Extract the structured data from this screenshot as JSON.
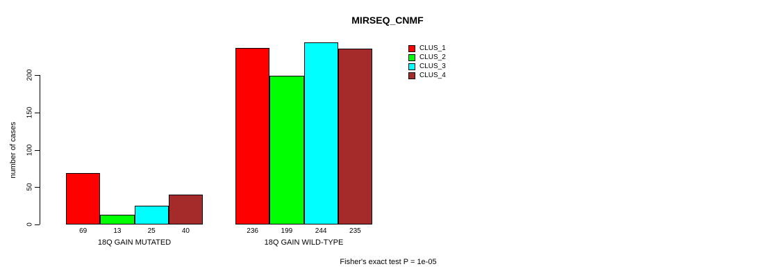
{
  "title": "MIRSEQ_CNMF",
  "footnote": "Fisher's exact test P = 1e-05",
  "chart_data": {
    "type": "bar",
    "title": "MIRSEQ_CNMF",
    "ylabel": "number of cases",
    "xlabel": "",
    "groups": [
      "18Q GAIN MUTATED",
      "18Q GAIN WILD-TYPE"
    ],
    "series": [
      {
        "name": "CLUS_1",
        "color": "#FF0000",
        "values": [
          69,
          236
        ]
      },
      {
        "name": "CLUS_2",
        "color": "#00FF00",
        "values": [
          13,
          199
        ]
      },
      {
        "name": "CLUS_3",
        "color": "#00FFFF",
        "values": [
          25,
          244
        ]
      },
      {
        "name": "CLUS_4",
        "color": "#A52A2A",
        "values": [
          40,
          235
        ]
      }
    ],
    "bar_value_labels": [
      [
        "69",
        "13",
        "25",
        "40"
      ],
      [
        "236",
        "199",
        "244",
        "235"
      ]
    ],
    "yticks": [
      0,
      50,
      100,
      150,
      200
    ],
    "ylim": [
      0,
      250
    ],
    "grid": false,
    "legend_position": "right",
    "legend": [
      "CLUS_1",
      "CLUS_2",
      "CLUS_3",
      "CLUS_4"
    ],
    "annotation": "Fisher's exact test P = 1e-05"
  }
}
